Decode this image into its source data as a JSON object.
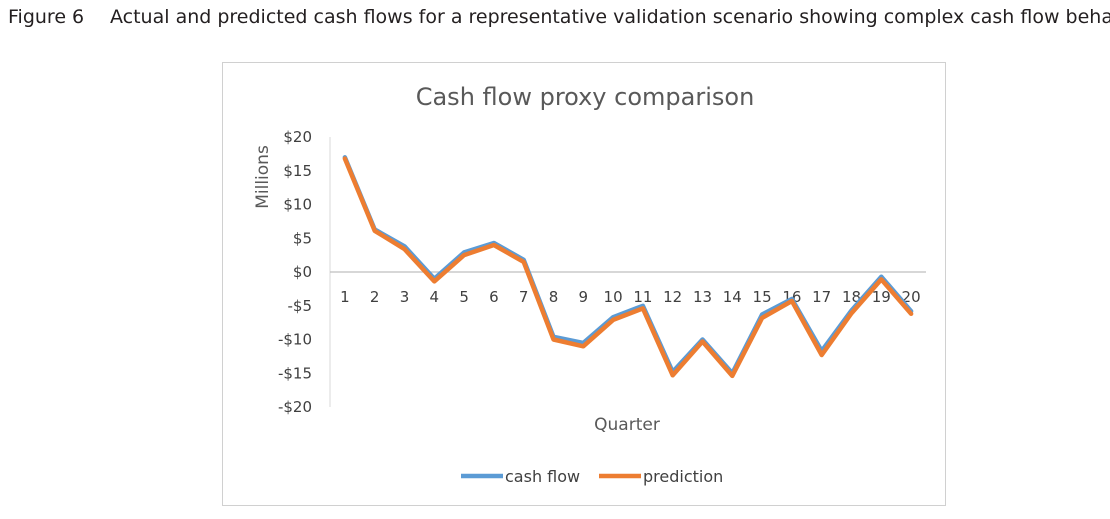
{
  "caption": {
    "label": "Figure 6",
    "text": "Actual and predicted cash flows for a representative validation scenario showing complex cash flow behavior"
  },
  "chart_data": {
    "type": "line",
    "title": "Cash flow proxy comparison",
    "xlabel": "Quarter",
    "ylabel": "Millions",
    "categories": [
      "1",
      "2",
      "3",
      "4",
      "5",
      "6",
      "7",
      "8",
      "9",
      "10",
      "11",
      "12",
      "13",
      "14",
      "15",
      "16",
      "17",
      "18",
      "19",
      "20"
    ],
    "ylim": [
      -20,
      20
    ],
    "yticks": [
      {
        "value": 20,
        "label": "$20"
      },
      {
        "value": 15,
        "label": "$15"
      },
      {
        "value": 10,
        "label": "$10"
      },
      {
        "value": 5,
        "label": "$5"
      },
      {
        "value": 0,
        "label": "$0"
      },
      {
        "value": -5,
        "label": "-$5"
      },
      {
        "value": -10,
        "label": "-$10"
      },
      {
        "value": -15,
        "label": "-$15"
      },
      {
        "value": -20,
        "label": "-$20"
      }
    ],
    "series": [
      {
        "name": "cash flow",
        "color": "#5b9bd5",
        "values": [
          17,
          6.3,
          3.8,
          -1,
          2.9,
          4.3,
          1.8,
          -9.6,
          -10.5,
          -6.7,
          -5,
          -14.8,
          -10,
          -15,
          -6.3,
          -4,
          -11.7,
          -5.7,
          -0.7,
          -5.8
        ]
      },
      {
        "name": "prediction",
        "color": "#ed7d31",
        "values": [
          16.8,
          6.1,
          3.4,
          -1.4,
          2.5,
          4.0,
          1.5,
          -10,
          -11,
          -7.1,
          -5.4,
          -15.3,
          -10.3,
          -15.4,
          -6.8,
          -4.3,
          -12.3,
          -6.1,
          -1.1,
          -6.2
        ]
      }
    ],
    "legend": "bottom",
    "grid": false
  }
}
